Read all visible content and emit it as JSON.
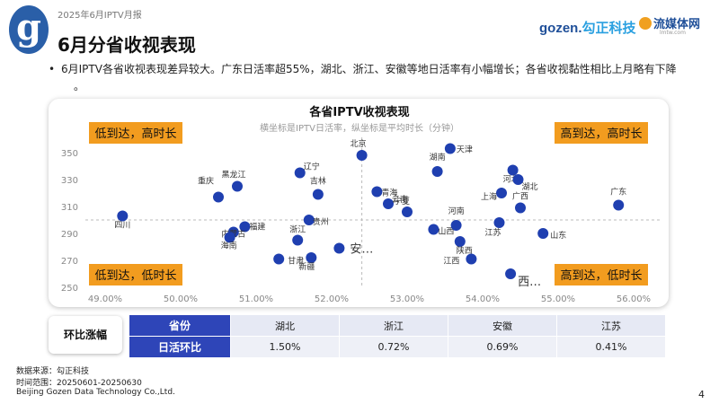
{
  "header": {
    "report_label": "2025年6月IPTV月报",
    "title": "6月分省收视表现",
    "logo_letter": "g",
    "brand_gozen_a": "gozen.",
    "brand_gozen_b": "勾正科技",
    "brand_media": "流媒体网",
    "brand_url": "lmtw.com"
  },
  "summary": {
    "bullet": "•",
    "text": "6月IPTV各省收视表现差异较大。广东日活率超55%，湖北、浙江、安徽等地日活率有小幅增长；各省收视黏性相比上月略有下降",
    "continuation": "。"
  },
  "colors": {
    "dot": "#1f3fb0",
    "quadrant": "#f29c1f",
    "table_header": "#2e45b8",
    "divider": "#bbbbbb"
  },
  "chart_data": {
    "type": "scatter",
    "title": "各省IPTV收视表现",
    "subtitle": "横坐标是IPTV日活率，纵坐标是平均时长（分钟）",
    "xlim": [
      0.49,
      0.56
    ],
    "ylim": [
      250,
      360
    ],
    "x_ticks": [
      0.49,
      0.5,
      0.51,
      0.52,
      0.53,
      0.54,
      0.55,
      0.56
    ],
    "x_tick_labels": [
      "49.00%",
      "50.00%",
      "51.00%",
      "52.00%",
      "53.00%",
      "54.00%",
      "55.00%",
      "56.00%"
    ],
    "y_ticks": [
      250,
      270,
      290,
      310,
      330,
      350
    ],
    "y_tick_labels": [
      "250",
      "270",
      "290",
      "310",
      "330",
      "350"
    ],
    "ref_x": 0.524,
    "ref_y": 300,
    "quadrants": {
      "top_left": "低到达，高时长",
      "top_right": "高到达，高时长",
      "bottom_left": "低到达，低时长",
      "bottom_right": "高到达，低时长"
    },
    "points": [
      {
        "name": "四川",
        "x": 0.4923,
        "y": 303
      },
      {
        "name": "重庆",
        "x": 0.505,
        "y": 317
      },
      {
        "name": "黑龙江",
        "x": 0.5075,
        "y": 325
      },
      {
        "name": "福建",
        "x": 0.5085,
        "y": 295
      },
      {
        "name": "内蒙古",
        "x": 0.507,
        "y": 291
      },
      {
        "name": "海南",
        "x": 0.5065,
        "y": 287
      },
      {
        "name": "甘肃",
        "x": 0.513,
        "y": 271
      },
      {
        "name": "新疆",
        "x": 0.5173,
        "y": 272
      },
      {
        "name": "浙江",
        "x": 0.5155,
        "y": 285
      },
      {
        "name": "贵州",
        "x": 0.517,
        "y": 300
      },
      {
        "name": "辽宁",
        "x": 0.5158,
        "y": 335
      },
      {
        "name": "吉林",
        "x": 0.5182,
        "y": 319
      },
      {
        "name": "北京",
        "x": 0.524,
        "y": 348
      },
      {
        "name": "安…",
        "x": 0.521,
        "y": 279
      },
      {
        "name": "青海",
        "x": 0.526,
        "y": 321
      },
      {
        "name": "云南",
        "x": 0.5275,
        "y": 312
      },
      {
        "name": "宁夏",
        "x": 0.53,
        "y": 306
      },
      {
        "name": "天津",
        "x": 0.5357,
        "y": 353
      },
      {
        "name": "湖南",
        "x": 0.534,
        "y": 336
      },
      {
        "name": "山西",
        "x": 0.5335,
        "y": 293
      },
      {
        "name": "河南",
        "x": 0.5365,
        "y": 296
      },
      {
        "name": "陕西",
        "x": 0.537,
        "y": 284
      },
      {
        "name": "江西",
        "x": 0.5385,
        "y": 271
      },
      {
        "name": "河北",
        "x": 0.544,
        "y": 337
      },
      {
        "name": "湖北",
        "x": 0.5447,
        "y": 330
      },
      {
        "name": "上海",
        "x": 0.5425,
        "y": 320
      },
      {
        "name": "广西",
        "x": 0.545,
        "y": 309
      },
      {
        "name": "江苏",
        "x": 0.5422,
        "y": 298
      },
      {
        "name": "山东",
        "x": 0.548,
        "y": 290
      },
      {
        "name": "西…",
        "x": 0.5437,
        "y": 260
      },
      {
        "name": "广东",
        "x": 0.558,
        "y": 311
      }
    ]
  },
  "table": {
    "row_label": "环比涨幅",
    "header_province": "省份",
    "header_metric": "日活环比",
    "provinces": [
      "湖北",
      "浙江",
      "安徽",
      "江苏"
    ],
    "values": [
      "1.50%",
      "0.72%",
      "0.69%",
      "0.41%"
    ]
  },
  "footer": {
    "source": "数据来源：勾正科技",
    "range": "时间范围：20250601-20250630",
    "company": "Beijing Gozen Data Technology Co.,Ltd.",
    "page": "4"
  }
}
